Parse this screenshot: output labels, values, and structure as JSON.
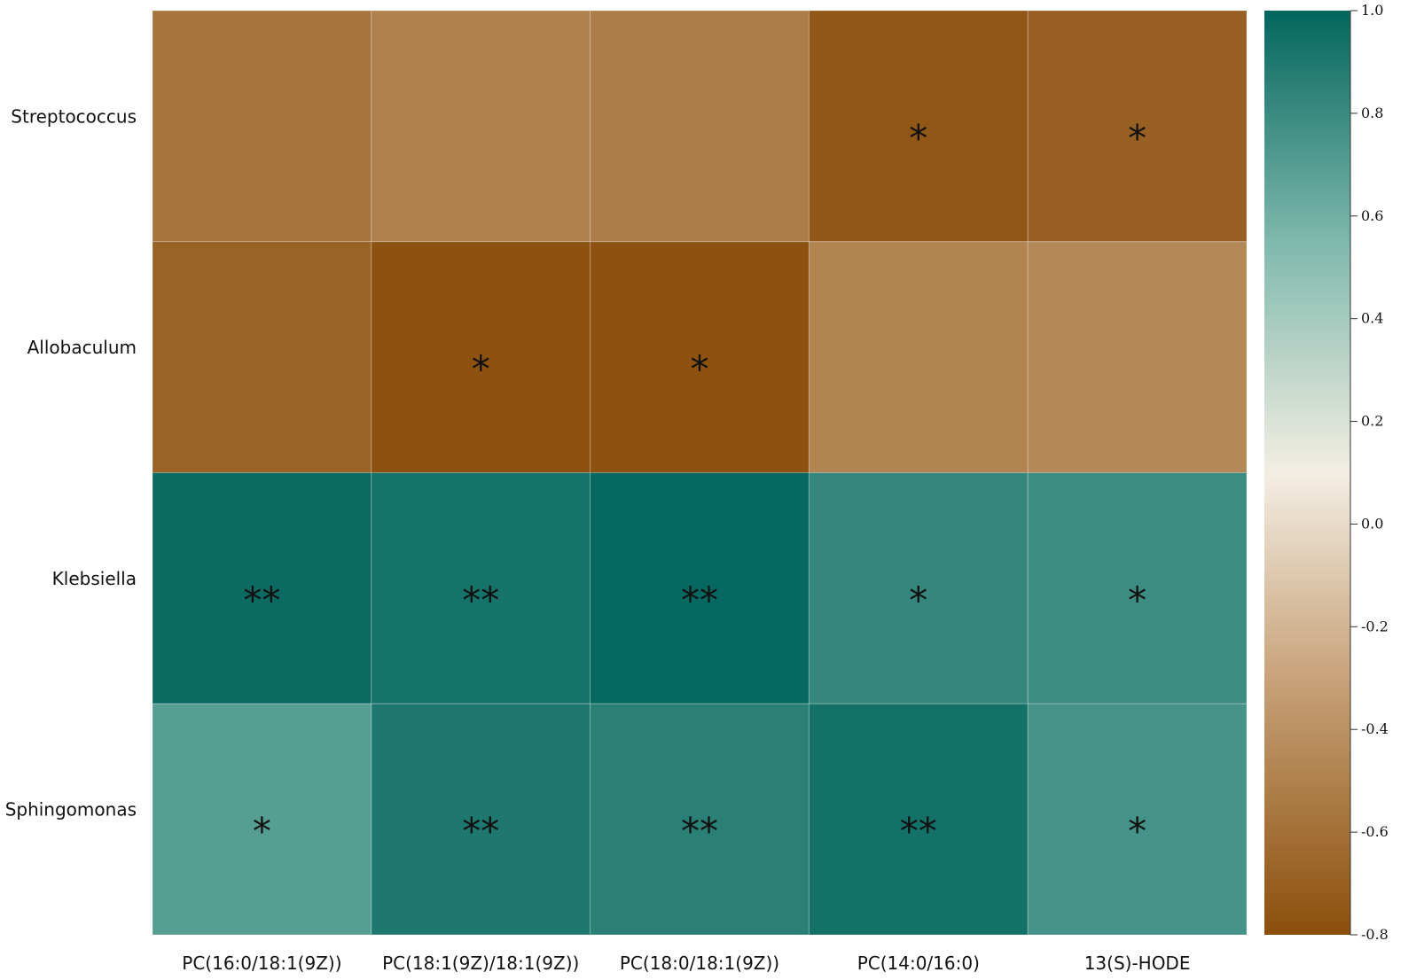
{
  "chart_data": {
    "type": "heatmap",
    "title": "",
    "xlabel": "",
    "ylabel": "",
    "rows": [
      "Streptococcus",
      "Allobaculum",
      "Klebsiella",
      "Sphingomonas"
    ],
    "columns": [
      "PC(16:0/18:1(9Z))",
      "PC(18:1(9Z)/18:1(9Z))",
      "PC(18:0/18:1(9Z))",
      "PC(14:0/16:0)",
      "13(S)-HODE"
    ],
    "values": [
      [
        -0.58,
        -0.5,
        -0.52,
        -0.75,
        -0.69
      ],
      [
        -0.68,
        -0.78,
        -0.78,
        -0.48,
        -0.46
      ],
      [
        0.97,
        0.93,
        0.99,
        0.82,
        0.79
      ],
      [
        0.7,
        0.9,
        0.86,
        0.94,
        0.76
      ]
    ],
    "annotations": [
      [
        "",
        "",
        "",
        "*",
        "*"
      ],
      [
        "",
        "*",
        "*",
        "",
        ""
      ],
      [
        "**",
        "**",
        "**",
        "*",
        "*"
      ],
      [
        "*",
        "**",
        "**",
        "**",
        "*"
      ]
    ],
    "colorbar": {
      "vmin": -0.8,
      "vmax": 1.0,
      "ticks": [
        1.0,
        0.8,
        0.6,
        0.4,
        0.2,
        0.0,
        -0.2,
        -0.4,
        -0.6,
        -0.8
      ],
      "tick_labels": [
        "1.0",
        "0.8",
        "0.6",
        "0.4",
        "0.2",
        "0.0",
        "-0.2",
        "-0.4",
        "-0.6",
        "-0.8"
      ],
      "colors": {
        "low": "#8b4f0b",
        "mid_low": "#c8a27a",
        "center": "#f3eee3",
        "mid_high": "#7fb8ac",
        "high": "#03665e"
      },
      "position": "right"
    },
    "grid": false,
    "legend": "none"
  }
}
